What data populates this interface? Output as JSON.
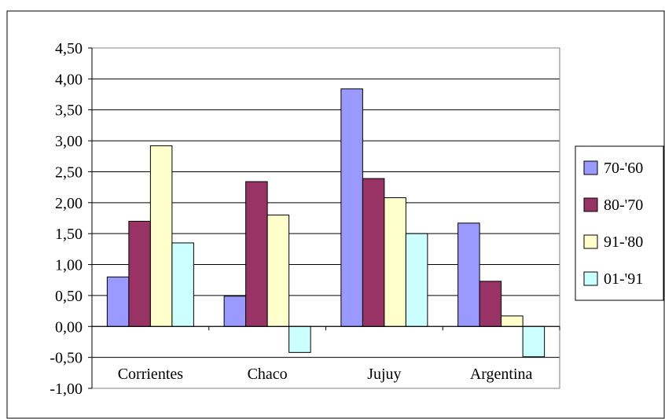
{
  "chart_data": {
    "type": "bar",
    "categories": [
      "Corrientes",
      "Chaco",
      "Jujuy",
      "Argentina"
    ],
    "series": [
      {
        "name": "70-'60",
        "color": "#9999ff",
        "values": [
          0.8,
          0.49,
          3.84,
          1.67
        ]
      },
      {
        "name": "80-'70",
        "color": "#993366",
        "values": [
          1.7,
          2.34,
          2.39,
          0.73
        ]
      },
      {
        "name": "91-'80",
        "color": "#ffffcc",
        "values": [
          2.92,
          1.8,
          2.08,
          0.17
        ]
      },
      {
        "name": "01-'91",
        "color": "#ccffff",
        "values": [
          1.35,
          -0.42,
          1.5,
          -0.49
        ]
      }
    ],
    "y_tick_labels": [
      "4,50",
      "4,00",
      "3,50",
      "3,00",
      "2,50",
      "2,00",
      "1,50",
      "1,00",
      "0,50",
      "0,00",
      "-0,50",
      "-1,00"
    ],
    "ylim": [
      -1.0,
      4.5
    ],
    "ystep": 0.5,
    "grid": true,
    "legend_position": "right"
  }
}
